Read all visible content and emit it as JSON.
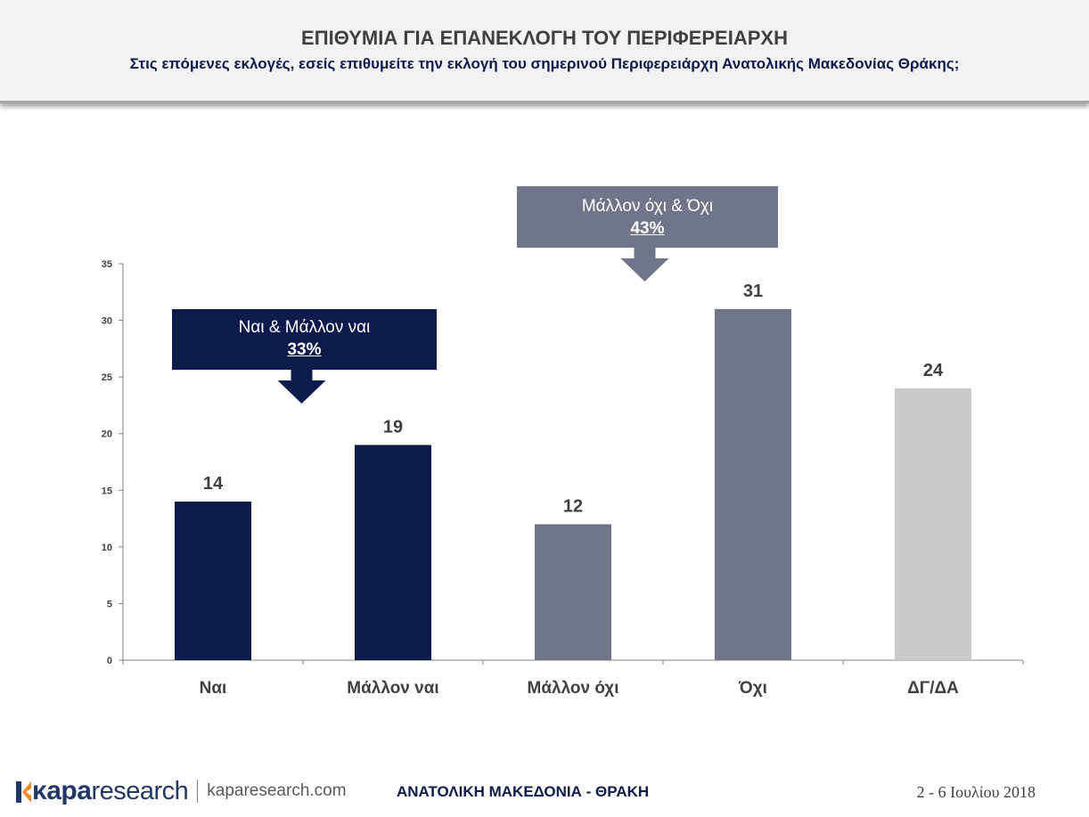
{
  "header": {
    "title": "ΕΠΙΘΥΜΙΑ ΓΙΑ ΕΠΑΝΕΚΛΟΓΗ ΤΟΥ ΠΕΡΙΦΕΡΕΙΑΡΧΗ",
    "subtitle": "Στις επόμενες εκλογές, εσείς επιθυμείτε την εκλογή του σημερινού Περιφερειάρχη Ανατολικής Μακεδονίας Θράκης;"
  },
  "callouts": {
    "yes": {
      "label": "Ναι & Μάλλον ναι",
      "value": "33%"
    },
    "no": {
      "label": "Μάλλον όχι & Όχι",
      "value": "43%"
    }
  },
  "chart_data": {
    "type": "bar",
    "categories": [
      "Ναι",
      "Μάλλον ναι",
      "Μάλλον όχι",
      "Όχι",
      "ΔΓ/ΔΑ"
    ],
    "values": [
      14,
      19,
      12,
      31,
      24
    ],
    "colors": [
      "#0d1b4c",
      "#0d1b4c",
      "#717589",
      "#717589",
      "#c9c9c9"
    ],
    "ylim": [
      0,
      35
    ],
    "yticks": [
      0,
      5,
      10,
      15,
      20,
      25,
      30,
      35
    ],
    "grid": false,
    "title": "",
    "xlabel": "",
    "ylabel": ""
  },
  "footer": {
    "logo_kapa": "κapa",
    "logo_research": "research",
    "logo_url": "kaparesearch.com",
    "region": "ΑΝΑΤΟΛΙΚΗ ΜΑΚΕΔΟΝΙΑ - ΘΡΑΚΗ",
    "date": "2 - 6 Ιουλίου 2018"
  },
  "colors": {
    "navy": "#0d1b4c",
    "slate": "#717589",
    "light_gray": "#c9c9c9",
    "brand_orange": "#f08a24"
  }
}
